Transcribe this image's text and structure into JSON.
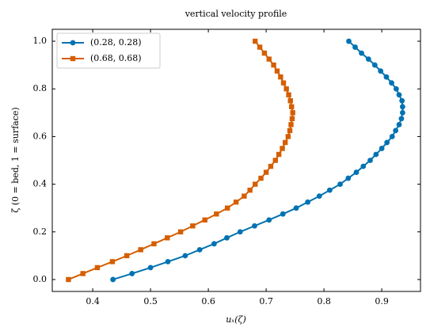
{
  "chart_data": {
    "type": "line",
    "title": "vertical velocity profile",
    "x_label": "uₓ(ζ)",
    "y_label": "ζ  (0 = bed, 1 = surface)",
    "y": [
      0,
      0.025,
      0.05,
      0.075,
      0.1,
      0.125,
      0.15,
      0.175,
      0.2,
      0.225,
      0.25,
      0.275,
      0.3,
      0.325,
      0.35,
      0.375,
      0.4,
      0.425,
      0.45,
      0.475,
      0.5,
      0.525,
      0.55,
      0.575,
      0.6,
      0.625,
      0.65,
      0.675,
      0.7,
      0.725,
      0.75,
      0.775,
      0.8,
      0.825,
      0.85,
      0.875,
      0.9,
      0.925,
      0.95,
      0.975,
      1
    ],
    "series": [
      {
        "name": "(0.28, 0.28)",
        "color": "#0072b2",
        "marker": "circle",
        "x": [
          0.435,
          0.468,
          0.5,
          0.53,
          0.56,
          0.585,
          0.61,
          0.632,
          0.655,
          0.68,
          0.705,
          0.729,
          0.752,
          0.772,
          0.792,
          0.81,
          0.828,
          0.842,
          0.856,
          0.868,
          0.88,
          0.89,
          0.9,
          0.909,
          0.918,
          0.924,
          0.93,
          0.934,
          0.936,
          0.936,
          0.935,
          0.93,
          0.925,
          0.917,
          0.908,
          0.898,
          0.888,
          0.877,
          0.865,
          0.854,
          0.843
        ]
      },
      {
        "name": "(0.68, 0.68)",
        "color": "#d55e00",
        "marker": "square",
        "x": [
          0.358,
          0.383,
          0.408,
          0.434,
          0.459,
          0.483,
          0.506,
          0.529,
          0.552,
          0.573,
          0.594,
          0.614,
          0.633,
          0.648,
          0.662,
          0.672,
          0.681,
          0.691,
          0.7,
          0.708,
          0.716,
          0.722,
          0.728,
          0.733,
          0.738,
          0.741,
          0.743,
          0.745,
          0.746,
          0.744,
          0.742,
          0.739,
          0.735,
          0.73,
          0.725,
          0.719,
          0.713,
          0.705,
          0.697,
          0.689,
          0.681
        ]
      }
    ],
    "xlim": [
      0.33,
      0.967
    ],
    "ylim": [
      -0.05,
      1.05
    ],
    "xticks": [
      0.4,
      0.5,
      0.6,
      0.7,
      0.8,
      0.9
    ],
    "yticks": [
      {
        "value": 0,
        "label": "0.0"
      },
      0.2,
      0.4,
      0.6,
      0.8,
      {
        "value": 1,
        "label": "1.0"
      }
    ],
    "legend": "upper left"
  }
}
